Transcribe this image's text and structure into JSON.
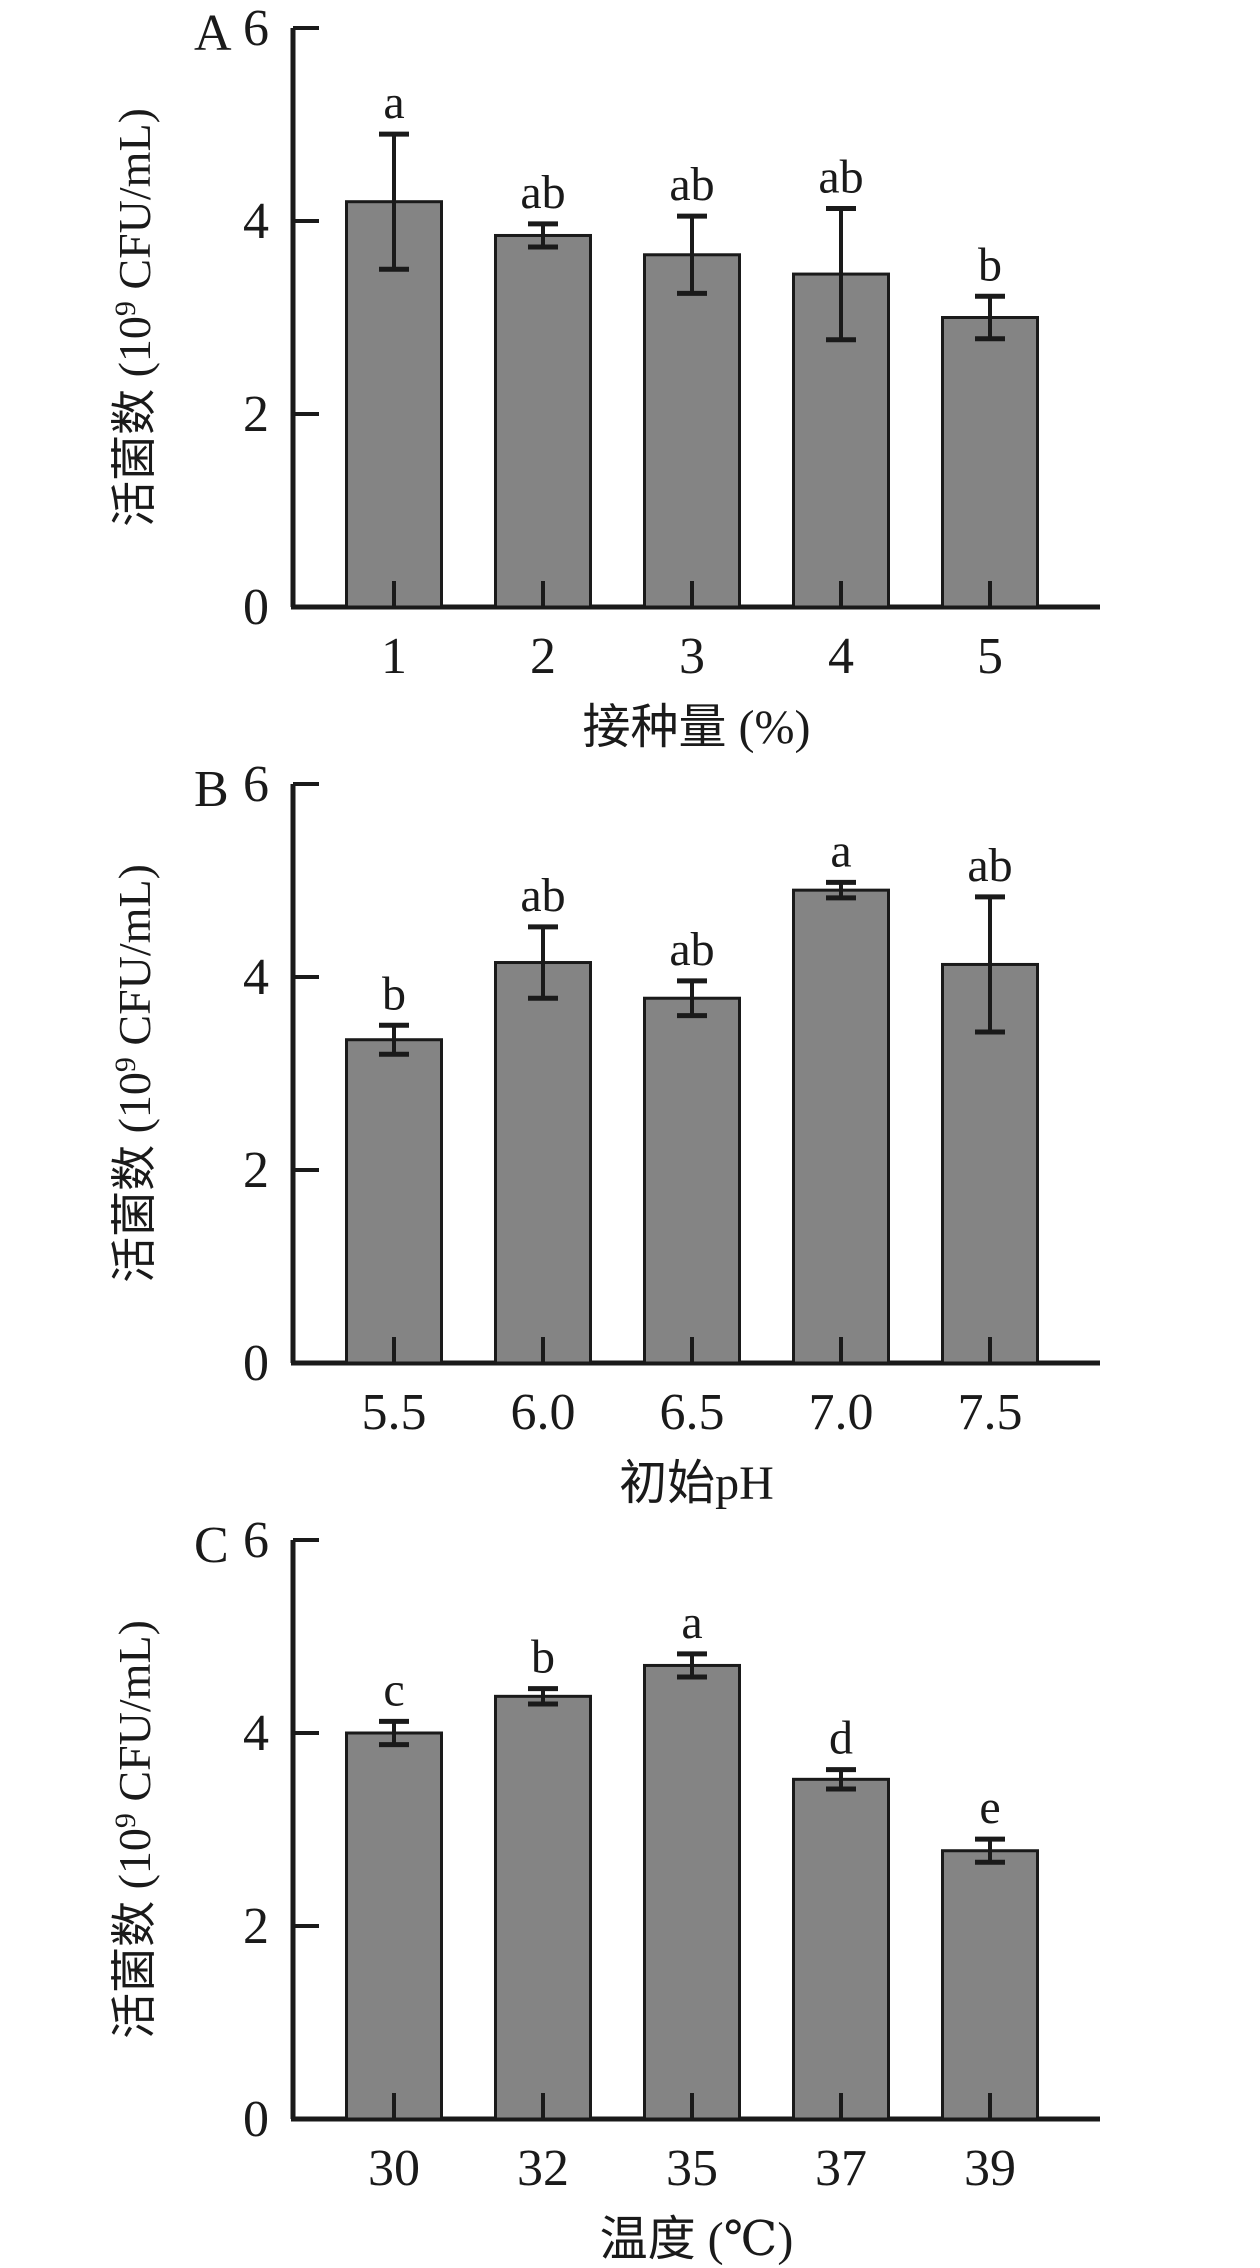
{
  "figure": {
    "background": "#ffffff",
    "bar_fill": "#848484",
    "bar_stroke": "#1a1a1a",
    "axis_color": "#1a1a1a",
    "text_color": "#1a1a1a",
    "ylabel": "活菌数 (10⁹ CFU/mL)",
    "ylabel_parts": [
      "活菌数 (10",
      "9",
      " CFU/mL)"
    ]
  },
  "chart_data": [
    {
      "type": "bar",
      "panel_label": "A",
      "xlabel": "接种量 (%)",
      "ylabel": "活菌数 (10⁹ CFU/mL)",
      "categories": [
        "1",
        "2",
        "3",
        "4",
        "5"
      ],
      "values": [
        4.2,
        3.85,
        3.65,
        3.45,
        3.0
      ],
      "errors": [
        0.7,
        0.12,
        0.4,
        0.68,
        0.22
      ],
      "sig_letters": [
        "a",
        "ab",
        "ab",
        "ab",
        "b"
      ],
      "ylim": [
        0,
        6
      ],
      "yticks": [
        0,
        2,
        4,
        6
      ],
      "grid": false,
      "legend": "none"
    },
    {
      "type": "bar",
      "panel_label": "B",
      "xlabel": "初始pH",
      "ylabel": "活菌数 (10⁹ CFU/mL)",
      "categories": [
        "5.5",
        "6.0",
        "6.5",
        "7.0",
        "7.5"
      ],
      "values": [
        3.35,
        4.15,
        3.78,
        4.9,
        4.13
      ],
      "errors": [
        0.15,
        0.37,
        0.18,
        0.08,
        0.7
      ],
      "sig_letters": [
        "b",
        "ab",
        "ab",
        "a",
        "ab"
      ],
      "ylim": [
        0,
        6
      ],
      "yticks": [
        0,
        2,
        4,
        6
      ],
      "grid": false,
      "legend": "none"
    },
    {
      "type": "bar",
      "panel_label": "C",
      "xlabel": "温度 (℃)",
      "ylabel": "活菌数 (10⁹ CFU/mL)",
      "categories": [
        "30",
        "32",
        "35",
        "37",
        "39"
      ],
      "values": [
        4.0,
        4.38,
        4.7,
        3.52,
        2.78
      ],
      "errors": [
        0.12,
        0.08,
        0.12,
        0.1,
        0.12
      ],
      "sig_letters": [
        "c",
        "b",
        "a",
        "d",
        "e"
      ],
      "ylim": [
        0,
        6
      ],
      "yticks": [
        0,
        2,
        4,
        6
      ],
      "grid": false,
      "legend": "none"
    }
  ]
}
